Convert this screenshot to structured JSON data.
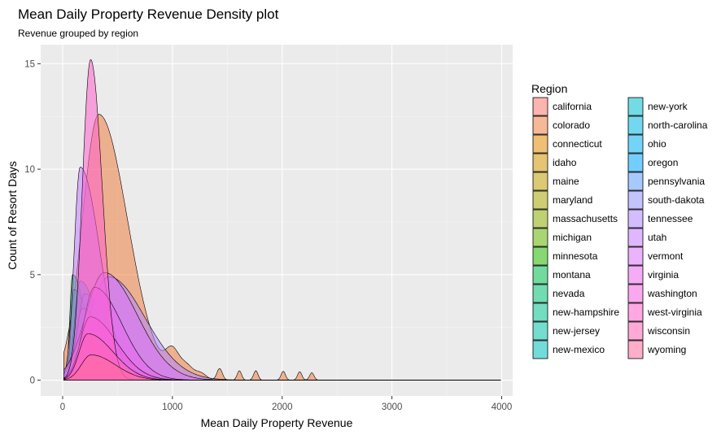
{
  "chart_data": {
    "type": "area",
    "subtype": "density",
    "title": "Mean Daily Property Revenue Density plot",
    "subtitle": "Revenue grouped by region",
    "xlabel": "Mean Daily Property Revenue",
    "ylabel": "Count of Resort Days",
    "xlim": [
      -200,
      4100
    ],
    "ylim": [
      -0.75,
      15.9
    ],
    "x_ticks": [
      0,
      1000,
      2000,
      3000,
      4000
    ],
    "y_ticks": [
      0,
      5,
      10,
      15
    ],
    "grid": true,
    "legend": {
      "title": "Region",
      "position": "right",
      "columns": 2
    },
    "background": "#EBEBEB",
    "fill_opacity": 0.55,
    "series": [
      {
        "name": "california",
        "color": "#F8766D",
        "peak_x": 240,
        "peak_y": 1.3,
        "left_width": 80,
        "right_width": 200
      },
      {
        "name": "colorado",
        "color": "#EE8044",
        "peak_x": 330,
        "peak_y": 12.6,
        "left_width": 150,
        "right_width": 260,
        "extra_bumps": [
          [
            1000,
            1.1,
            60
          ],
          [
            1130,
            0.6,
            60
          ],
          [
            1260,
            0.3,
            50
          ],
          [
            1430,
            0.55,
            25
          ],
          [
            1610,
            0.45,
            20
          ],
          [
            1760,
            0.45,
            20
          ],
          [
            2010,
            0.42,
            20
          ],
          [
            2160,
            0.4,
            20
          ],
          [
            2270,
            0.35,
            20
          ]
        ]
      },
      {
        "name": "connecticut",
        "color": "#E18A00",
        "peak_x": 300,
        "peak_y": 1.8,
        "left_width": 90,
        "right_width": 220
      },
      {
        "name": "idaho",
        "color": "#D09400",
        "peak_x": 270,
        "peak_y": 2.5,
        "left_width": 80,
        "right_width": 240
      },
      {
        "name": "maine",
        "color": "#BE9C00",
        "peak_x": 210,
        "peak_y": 1.6,
        "left_width": 70,
        "right_width": 200
      },
      {
        "name": "maryland",
        "color": "#A8A400",
        "peak_x": 230,
        "peak_y": 1.1,
        "left_width": 70,
        "right_width": 180
      },
      {
        "name": "massachusetts",
        "color": "#8CAB00",
        "peak_x": 260,
        "peak_y": 1.9,
        "left_width": 80,
        "right_width": 220
      },
      {
        "name": "michigan",
        "color": "#64B200",
        "peak_x": 190,
        "peak_y": 2.1,
        "left_width": 60,
        "right_width": 190
      },
      {
        "name": "minnesota",
        "color": "#24B700",
        "peak_x": 170,
        "peak_y": 2.3,
        "left_width": 60,
        "right_width": 170
      },
      {
        "name": "montana",
        "color": "#00BB4E",
        "peak_x": 90,
        "peak_y": 5.0,
        "left_width": 25,
        "right_width": 120
      },
      {
        "name": "nevada",
        "color": "#00BE71",
        "peak_x": 100,
        "peak_y": 4.3,
        "left_width": 25,
        "right_width": 150
      },
      {
        "name": "new-hampshire",
        "color": "#00C08E",
        "peak_x": 280,
        "peak_y": 1.9,
        "left_width": 90,
        "right_width": 260
      },
      {
        "name": "new-jersey",
        "color": "#00C1A7",
        "peak_x": 230,
        "peak_y": 0.8,
        "left_width": 80,
        "right_width": 200
      },
      {
        "name": "new-mexico",
        "color": "#00C0BD",
        "peak_x": 200,
        "peak_y": 3.6,
        "left_width": 70,
        "right_width": 200
      },
      {
        "name": "new-york",
        "color": "#00BDD0",
        "peak_x": 180,
        "peak_y": 3.0,
        "left_width": 60,
        "right_width": 200
      },
      {
        "name": "north-carolina",
        "color": "#00B8E2",
        "peak_x": 220,
        "peak_y": 2.6,
        "left_width": 70,
        "right_width": 220
      },
      {
        "name": "ohio",
        "color": "#00B0F2",
        "peak_x": 160,
        "peak_y": 4.7,
        "left_width": 50,
        "right_width": 170
      },
      {
        "name": "oregon",
        "color": "#00A6FF",
        "peak_x": 230,
        "peak_y": 2.4,
        "left_width": 70,
        "right_width": 230
      },
      {
        "name": "pennsylvania",
        "color": "#619CFF",
        "peak_x": 200,
        "peak_y": 4.1,
        "left_width": 60,
        "right_width": 220
      },
      {
        "name": "south-dakota",
        "color": "#8F91FF",
        "peak_x": 180,
        "peak_y": 3.4,
        "left_width": 60,
        "right_width": 200
      },
      {
        "name": "tennessee",
        "color": "#AE87FF",
        "peak_x": 420,
        "peak_y": 4.9,
        "left_width": 180,
        "right_width": 330
      },
      {
        "name": "utah",
        "color": "#C77CFF",
        "peak_x": 160,
        "peak_y": 10.1,
        "left_width": 55,
        "right_width": 180
      },
      {
        "name": "vermont",
        "color": "#DB72FB",
        "peak_x": 380,
        "peak_y": 5.1,
        "left_width": 170,
        "right_width": 300
      },
      {
        "name": "virginia",
        "color": "#EB68EF",
        "peak_x": 290,
        "peak_y": 4.4,
        "left_width": 100,
        "right_width": 250
      },
      {
        "name": "washington",
        "color": "#F763E0",
        "peak_x": 250,
        "peak_y": 3.0,
        "left_width": 90,
        "right_width": 240
      },
      {
        "name": "west-virginia",
        "color": "#FF61CC",
        "peak_x": 255,
        "peak_y": 15.2,
        "left_width": 75,
        "right_width": 105
      },
      {
        "name": "wisconsin",
        "color": "#FF65B5",
        "peak_x": 230,
        "peak_y": 2.2,
        "left_width": 80,
        "right_width": 230
      },
      {
        "name": "wyoming",
        "color": "#FF6C9C",
        "peak_x": 260,
        "peak_y": 1.2,
        "left_width": 90,
        "right_width": 220
      }
    ]
  }
}
